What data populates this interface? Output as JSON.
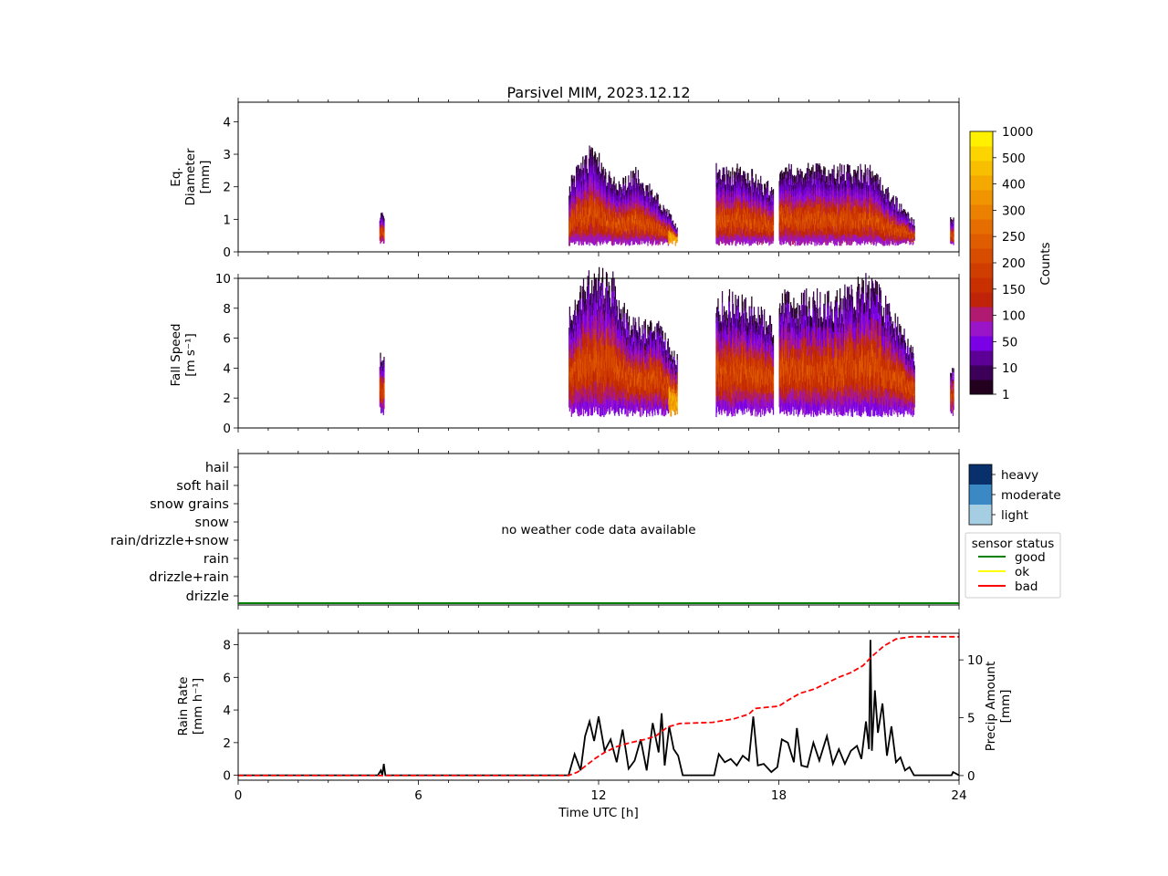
{
  "title": "Parsivel MIM, 2023.12.12",
  "colors": {
    "counts_cmap": [
      "#22001e",
      "#3c0058",
      "#5c0096",
      "#7a00e6",
      "#9a14c8",
      "#b01a70",
      "#bf2308",
      "#c83000",
      "#d03d00",
      "#d84c00",
      "#e05c00",
      "#e66e00",
      "#ec8000",
      "#f09400",
      "#f4a800",
      "#f8bf00",
      "#fcd500",
      "#fff000"
    ],
    "intensity": {
      "light": "#a6cee3",
      "moderate": "#3a88c4",
      "heavy": "#08306b"
    },
    "status": {
      "good": "#008000",
      "ok": "#ffff00",
      "bad": "#ff0000"
    },
    "rain_rate_line": "#000000",
    "precip_amount_line": "#ff0000"
  },
  "colorbar": {
    "label": "Counts",
    "ticks": [
      "1000",
      "500",
      "400",
      "300",
      "250",
      "200",
      "150",
      "100",
      "50",
      "10",
      "1"
    ]
  },
  "panels": {
    "diameter": {
      "ylabel": [
        "Eq.",
        "Diameter",
        "[mm]"
      ],
      "yticks": [
        "0",
        "1",
        "2",
        "3",
        "4"
      ]
    },
    "speed": {
      "ylabel": [
        "Fall Speed",
        "[m s⁻¹]"
      ],
      "yticks": [
        "0",
        "2",
        "4",
        "6",
        "8",
        "10"
      ]
    },
    "weather": {
      "categories": [
        "drizzle",
        "drizzle+rain",
        "rain",
        "rain/drizzle+snow",
        "snow",
        "snow grains",
        "soft hail",
        "hail"
      ],
      "message": "no weather code data available",
      "intensity_legend": [
        "heavy",
        "moderate",
        "light"
      ],
      "status_legend": {
        "title": "sensor status",
        "items": [
          "good",
          "ok",
          "bad"
        ]
      }
    },
    "rain": {
      "ylabel_left": [
        "Rain Rate",
        "[mm h⁻¹]"
      ],
      "ylabel_right": [
        "Precip Amount",
        "[mm]"
      ],
      "yticks_left": [
        "0",
        "2",
        "4",
        "6",
        "8"
      ],
      "yticks_right": [
        "0",
        "5",
        "10"
      ],
      "xlabel": "Time UTC [h]",
      "xticks": [
        "0",
        "6",
        "12",
        "18",
        "24"
      ]
    }
  },
  "chart_data": [
    {
      "type": "heatmap",
      "name": "diameter",
      "xlim": [
        0,
        24
      ],
      "ylim": [
        0,
        4.6
      ],
      "precip_periods_h": [
        [
          4.7,
          4.85
        ],
        [
          11.0,
          14.6
        ],
        [
          15.9,
          17.8
        ],
        [
          18.0,
          22.5
        ],
        [
          23.7,
          23.8
        ]
      ],
      "diameter_upper_mm": [
        [
          4.7,
          1.2
        ],
        [
          11.0,
          2.1
        ],
        [
          11.7,
          3.0
        ],
        [
          12.0,
          2.8
        ],
        [
          12.6,
          2.0
        ],
        [
          13.2,
          2.4
        ],
        [
          14.0,
          1.6
        ],
        [
          14.6,
          0.8
        ],
        [
          15.9,
          2.5
        ],
        [
          16.8,
          2.5
        ],
        [
          17.8,
          1.9
        ],
        [
          18.0,
          2.5
        ],
        [
          19.0,
          2.5
        ],
        [
          20.0,
          2.5
        ],
        [
          21.0,
          2.5
        ],
        [
          22.5,
          0.9
        ],
        [
          23.7,
          1.0
        ]
      ]
    },
    {
      "type": "heatmap",
      "name": "fall_speed",
      "xlim": [
        0,
        24
      ],
      "ylim": [
        0,
        10
      ],
      "speed_upper_ms": [
        [
          4.7,
          5.0
        ],
        [
          11.0,
          7.5
        ],
        [
          11.7,
          9.8
        ],
        [
          12.4,
          9.8
        ],
        [
          13.0,
          7.0
        ],
        [
          14.0,
          6.5
        ],
        [
          14.6,
          4.5
        ],
        [
          15.9,
          8.5
        ],
        [
          16.8,
          8.5
        ],
        [
          17.8,
          7.0
        ],
        [
          18.0,
          8.5
        ],
        [
          20.0,
          8.5
        ],
        [
          21.0,
          9.8
        ],
        [
          22.5,
          5.0
        ],
        [
          23.7,
          4.0
        ]
      ]
    },
    {
      "type": "line",
      "name": "rain_rate",
      "xlabel": "Time UTC [h]",
      "ylabel": "Rain Rate [mm h⁻¹]",
      "xlim": [
        0,
        24
      ],
      "ylim": [
        -0.3,
        8.7
      ],
      "x": [
        0,
        4.65,
        4.75,
        4.8,
        4.85,
        4.9,
        4.95,
        11.0,
        11.2,
        11.4,
        11.55,
        11.7,
        11.85,
        12.0,
        12.2,
        12.4,
        12.6,
        12.8,
        13.0,
        13.2,
        13.4,
        13.6,
        13.8,
        14.0,
        14.1,
        14.2,
        14.35,
        14.5,
        14.65,
        14.8,
        15.0,
        15.5,
        15.85,
        16.0,
        16.2,
        16.4,
        16.6,
        16.8,
        17.0,
        17.15,
        17.3,
        17.5,
        17.75,
        17.95,
        18.1,
        18.3,
        18.5,
        18.6,
        18.75,
        18.95,
        19.15,
        19.35,
        19.6,
        19.8,
        20.0,
        20.2,
        20.4,
        20.6,
        20.75,
        20.9,
        21.0,
        21.05,
        21.1,
        21.2,
        21.3,
        21.45,
        21.6,
        21.75,
        21.9,
        22.05,
        22.2,
        22.35,
        22.5,
        23.0,
        23.75,
        23.8,
        24.0
      ],
      "values": [
        0,
        0,
        0.3,
        0,
        0.7,
        0,
        0,
        0,
        1.3,
        0.3,
        2.4,
        3.3,
        2.1,
        3.6,
        1.5,
        2.2,
        0.8,
        2.8,
        0.4,
        0.9,
        2.2,
        0.3,
        3.2,
        1.4,
        3.8,
        0.6,
        3.0,
        1.6,
        1.2,
        0,
        0,
        0,
        0,
        1.3,
        0.8,
        1.0,
        0.6,
        1.2,
        0.9,
        3.6,
        0.6,
        0.7,
        0.2,
        0.5,
        2.2,
        2.0,
        0.8,
        2.9,
        0.6,
        0.5,
        2.0,
        0.9,
        2.4,
        0.7,
        1.6,
        0.7,
        1.5,
        1.8,
        1.0,
        3.3,
        1.6,
        8.3,
        1.5,
        5.2,
        2.6,
        4.4,
        1.2,
        3.0,
        0.8,
        1.1,
        0.3,
        0.5,
        0,
        0,
        0,
        0.2,
        0
      ]
    },
    {
      "type": "line",
      "name": "precip_amount",
      "ylabel": "Precip Amount [mm]",
      "xlim": [
        0,
        24
      ],
      "ylim": [
        -0.4,
        12.3
      ],
      "x": [
        0,
        11.0,
        11.3,
        11.6,
        11.9,
        12.2,
        12.6,
        13.0,
        13.5,
        13.9,
        14.3,
        14.7,
        15.8,
        16.5,
        17.0,
        17.2,
        17.6,
        18.0,
        18.3,
        18.7,
        19.2,
        19.6,
        20.0,
        20.4,
        20.8,
        21.1,
        21.5,
        21.9,
        22.4,
        24.0
      ],
      "values": [
        0,
        0,
        0.3,
        0.9,
        1.5,
        2.0,
        2.5,
        2.8,
        3.1,
        3.4,
        4.2,
        4.5,
        4.6,
        4.9,
        5.3,
        5.8,
        5.9,
        6.0,
        6.5,
        7.1,
        7.5,
        8.0,
        8.5,
        8.9,
        9.5,
        10.3,
        11.2,
        11.8,
        12.0,
        12.0
      ]
    }
  ]
}
